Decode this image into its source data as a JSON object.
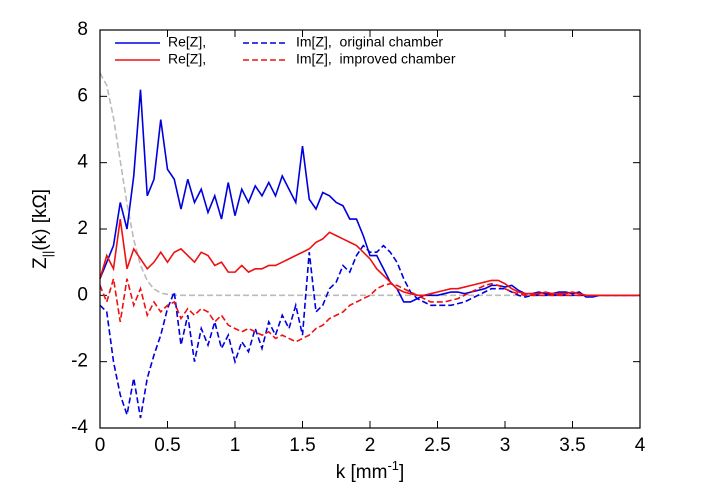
{
  "chart_data": {
    "type": "line",
    "xlabel": [
      "k [mm",
      "-1",
      "]"
    ],
    "ylabel": [
      "Z",
      "||",
      "(k) [kΩ]"
    ],
    "x": [
      0,
      0.05,
      0.1,
      0.15,
      0.2,
      0.25,
      0.3,
      0.35,
      0.4,
      0.45,
      0.5,
      0.55,
      0.6,
      0.65,
      0.7,
      0.75,
      0.8,
      0.85,
      0.9,
      0.95,
      1,
      1.05,
      1.1,
      1.15,
      1.2,
      1.25,
      1.3,
      1.35,
      1.4,
      1.45,
      1.5,
      1.55,
      1.6,
      1.65,
      1.7,
      1.75,
      1.8,
      1.85,
      1.9,
      1.95,
      2,
      2.05,
      2.1,
      2.15,
      2.2,
      2.25,
      2.3,
      2.35,
      2.4,
      2.45,
      2.5,
      2.55,
      2.6,
      2.65,
      2.7,
      2.75,
      2.8,
      2.85,
      2.9,
      2.95,
      3,
      3.05,
      3.1,
      3.15,
      3.2,
      3.25,
      3.3,
      3.35,
      3.4,
      3.45,
      3.5,
      3.55,
      3.6,
      3.65,
      3.7,
      3.75,
      3.8,
      3.85,
      3.9,
      3.95,
      4
    ],
    "series": [
      {
        "name": "Re[Z],",
        "color": "#0000dd",
        "dashed": false,
        "values": [
          0.5,
          1.0,
          1.5,
          2.8,
          2.0,
          3.6,
          6.2,
          3.0,
          3.5,
          5.3,
          3.8,
          3.5,
          2.6,
          3.5,
          2.8,
          3.2,
          2.5,
          3.0,
          2.3,
          3.4,
          2.4,
          3.2,
          2.8,
          3.3,
          3.0,
          3.4,
          3.0,
          3.6,
          3.2,
          2.8,
          4.5,
          2.9,
          2.6,
          3.1,
          3.0,
          2.8,
          2.7,
          2.3,
          2.3,
          1.8,
          1.2,
          1.2,
          0.8,
          0.4,
          0.2,
          -0.2,
          -0.2,
          -0.1,
          0,
          0,
          0,
          0.05,
          0.1,
          0.1,
          0.05,
          0.1,
          0.15,
          0.2,
          0.3,
          0.3,
          0.25,
          0.3,
          0.15,
          0.05,
          0.05,
          0.1,
          0.05,
          0.05,
          0.1,
          0.1,
          0.05,
          0.1,
          -0.05,
          -0.05,
          0,
          0,
          0,
          0,
          0,
          0,
          0
        ]
      },
      {
        "name": "Im[Z],  original chamber",
        "color": "#0000dd",
        "dashed": true,
        "values": [
          -0.3,
          -0.5,
          -2.0,
          -3.0,
          -3.6,
          -2.5,
          -3.7,
          -2.5,
          -1.8,
          -1.2,
          -0.4,
          0.1,
          -1.5,
          -0.6,
          -2.0,
          -1.0,
          -1.5,
          -0.8,
          -1.6,
          -1.2,
          -2.0,
          -1.4,
          -1.7,
          -1.0,
          -1.6,
          -0.8,
          -1.2,
          -0.6,
          -1.0,
          -0.3,
          -1.2,
          1.3,
          -0.5,
          -0.3,
          0.2,
          0.4,
          0.9,
          0.7,
          1.2,
          1.5,
          1.3,
          1.3,
          1.5,
          1.3,
          1.0,
          0.5,
          0.1,
          -0.1,
          -0.2,
          -0.3,
          -0.3,
          -0.3,
          -0.3,
          -0.25,
          -0.2,
          -0.1,
          0,
          0.1,
          0.2,
          0.2,
          0.2,
          0.1,
          0,
          -0.05,
          0,
          0,
          0,
          0,
          0,
          0,
          0,
          0,
          0,
          0,
          0,
          0,
          0,
          0,
          0,
          0,
          0
        ]
      },
      {
        "name": "Re[Z],",
        "color": "#ee1111",
        "dashed": false,
        "values": [
          0.5,
          1.2,
          0.8,
          2.3,
          0.8,
          1.4,
          1.1,
          0.8,
          1.0,
          1.3,
          1.0,
          1.3,
          1.4,
          1.2,
          1.0,
          1.3,
          1.2,
          0.9,
          1.0,
          0.7,
          0.7,
          0.9,
          0.7,
          0.8,
          0.8,
          0.9,
          0.9,
          1.0,
          1.1,
          1.2,
          1.3,
          1.4,
          1.6,
          1.7,
          1.9,
          1.8,
          1.7,
          1.6,
          1.5,
          1.3,
          1.1,
          0.8,
          0.6,
          0.4,
          0.2,
          0.1,
          0.05,
          0,
          0,
          0.05,
          0.1,
          0.15,
          0.2,
          0.2,
          0.25,
          0.3,
          0.35,
          0.4,
          0.45,
          0.45,
          0.35,
          0.2,
          0.1,
          0.05,
          0.05,
          0.05,
          0.1,
          0.05,
          0.05,
          0.05,
          0.1,
          0.05,
          0,
          0,
          0,
          0,
          0,
          0,
          0,
          0,
          0
        ]
      },
      {
        "name": "Im[Z],  improved chamber",
        "color": "#ee1111",
        "dashed": true,
        "values": [
          0.3,
          -0.2,
          0.5,
          -0.8,
          0.5,
          -0.3,
          0.2,
          -0.6,
          -0.2,
          -0.5,
          -0.3,
          -0.2,
          -0.7,
          -0.4,
          -0.6,
          -0.4,
          -0.5,
          -0.8,
          -0.6,
          -0.9,
          -1.0,
          -1.1,
          -1.0,
          -1.1,
          -1.2,
          -1.1,
          -1.3,
          -1.2,
          -1.3,
          -1.4,
          -1.3,
          -1.2,
          -1.0,
          -0.9,
          -0.7,
          -0.6,
          -0.5,
          -0.3,
          -0.2,
          -0.1,
          0,
          0.2,
          0.3,
          0.35,
          0.3,
          0.2,
          0.1,
          0,
          -0.1,
          -0.2,
          -0.2,
          -0.2,
          -0.15,
          -0.1,
          0,
          0.1,
          0.2,
          0.3,
          0.35,
          0.3,
          0.2,
          0.1,
          0.05,
          0,
          0,
          0,
          0,
          0,
          0,
          0,
          0,
          0,
          0,
          0,
          0,
          0,
          0,
          0,
          0,
          0,
          0
        ]
      },
      {
        "color": "#bbbbbb",
        "dashed": true,
        "values": [
          6.7,
          6.33,
          5.35,
          4.06,
          2.76,
          1.68,
          0.91,
          0.44,
          0.19,
          0.07,
          0.03,
          0.01,
          0,
          0,
          0,
          0,
          0,
          0,
          0,
          0,
          0,
          0,
          0,
          0,
          0,
          0,
          0,
          0,
          0,
          0,
          0,
          0,
          0,
          0,
          0,
          0,
          0,
          0,
          0,
          0,
          0,
          0,
          0,
          0,
          0,
          0,
          0,
          0,
          0,
          0,
          0,
          0,
          0,
          0,
          0,
          0,
          0,
          0,
          0,
          0,
          0,
          0,
          0,
          0,
          0,
          0,
          0,
          0,
          0,
          0,
          0,
          0,
          0,
          0,
          0,
          0,
          0,
          0,
          0,
          0,
          0
        ]
      }
    ],
    "xlim": [
      0,
      4
    ],
    "xticks": [
      0,
      0.5,
      1,
      1.5,
      2,
      2.5,
      3,
      3.5,
      4
    ],
    "ylim": [
      -4,
      8
    ],
    "yticks": [
      -4,
      -2,
      0,
      2,
      4,
      6,
      8
    ],
    "legend": "upper-left"
  }
}
